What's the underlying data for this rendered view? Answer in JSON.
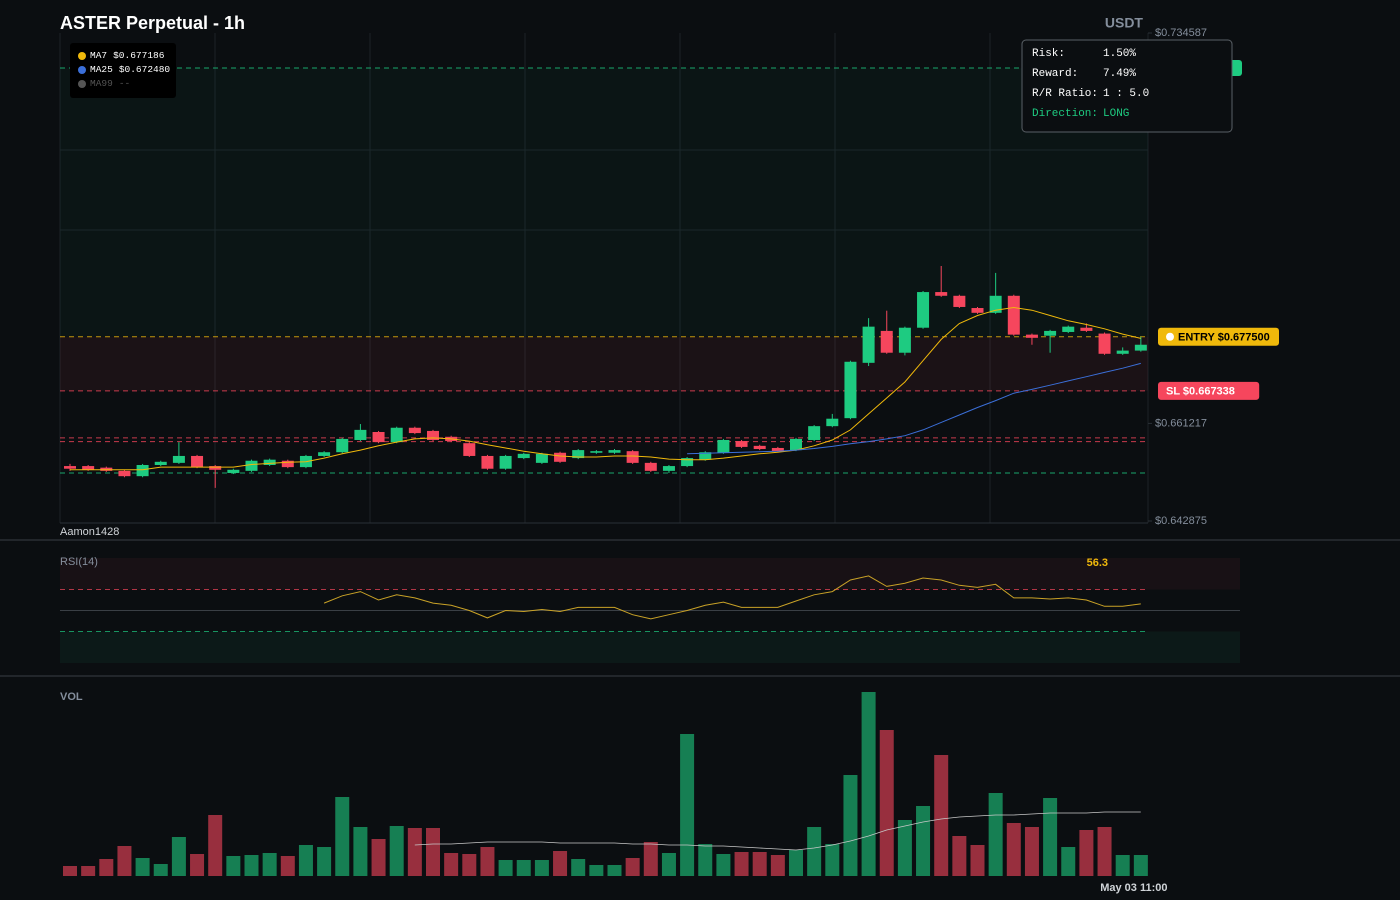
{
  "title": "ASTER Perpetual - 1h",
  "currency": "USDT",
  "watermark": "Aamon1428",
  "info": [
    [
      "Risk:",
      "1.50%"
    ],
    [
      "Reward:",
      "7.49%"
    ],
    [
      "R/R Ratio:",
      "1 : 5.0"
    ],
    [
      "Direction:",
      "LONG"
    ]
  ],
  "chart_data": [
    {
      "type": "candlestick",
      "colors": {
        "up": "#1ecb81",
        "down": "#f6465d"
      },
      "open": [
        0.6532,
        0.6532,
        0.6529,
        0.6523,
        0.6513,
        0.6534,
        0.6538,
        0.6551,
        0.6532,
        0.6519,
        0.6523,
        0.6534,
        0.6542,
        0.653,
        0.6551,
        0.6558,
        0.6581,
        0.6596,
        0.6577,
        0.6604,
        0.6598,
        0.6587,
        0.6575,
        0.6551,
        0.6527,
        0.6547,
        0.6538,
        0.6557,
        0.6547,
        0.6557,
        0.6557,
        0.656,
        0.6538,
        0.6523,
        0.6532,
        0.6544,
        0.6557,
        0.6579,
        0.657,
        0.6566,
        0.6562,
        0.6581,
        0.6607,
        0.6622,
        0.6726,
        0.6786,
        0.6745,
        0.6792,
        0.6859,
        0.6852,
        0.6829,
        0.682,
        0.6852,
        0.6779,
        0.6777,
        0.6784,
        0.6792,
        0.6781,
        0.6743,
        0.6749
      ],
      "high": [
        0.6536,
        0.6534,
        0.6531,
        0.6525,
        0.6536,
        0.6542,
        0.6577,
        0.6553,
        0.6534,
        0.6527,
        0.6544,
        0.6546,
        0.6544,
        0.6553,
        0.656,
        0.6585,
        0.6611,
        0.6598,
        0.6606,
        0.6606,
        0.66,
        0.6589,
        0.6577,
        0.6553,
        0.6553,
        0.6557,
        0.6557,
        0.6559,
        0.6564,
        0.6562,
        0.6564,
        0.6562,
        0.654,
        0.6534,
        0.6549,
        0.656,
        0.6583,
        0.6581,
        0.6572,
        0.6568,
        0.6585,
        0.6609,
        0.663,
        0.673,
        0.681,
        0.6824,
        0.6794,
        0.6861,
        0.6908,
        0.6854,
        0.6831,
        0.6895,
        0.6854,
        0.6781,
        0.6788,
        0.6796,
        0.68,
        0.6783,
        0.6755,
        0.6775
      ],
      "low": [
        0.6523,
        0.6523,
        0.6521,
        0.6511,
        0.6511,
        0.6532,
        0.6536,
        0.6528,
        0.6491,
        0.6517,
        0.6521,
        0.6532,
        0.6528,
        0.6528,
        0.6549,
        0.6556,
        0.6579,
        0.6575,
        0.6575,
        0.6592,
        0.6579,
        0.6577,
        0.6549,
        0.6525,
        0.6525,
        0.6545,
        0.6536,
        0.6538,
        0.6545,
        0.6555,
        0.6555,
        0.6536,
        0.6521,
        0.6519,
        0.653,
        0.6542,
        0.6555,
        0.6566,
        0.6562,
        0.6558,
        0.656,
        0.6579,
        0.6605,
        0.662,
        0.672,
        0.6743,
        0.674,
        0.679,
        0.685,
        0.6829,
        0.6818,
        0.6818,
        0.6777,
        0.676,
        0.6745,
        0.6782,
        0.6784,
        0.6741,
        0.6741,
        0.6747
      ],
      "close": [
        0.6527,
        0.6525,
        0.6523,
        0.6513,
        0.6534,
        0.654,
        0.6551,
        0.653,
        0.6525,
        0.6525,
        0.6542,
        0.6544,
        0.653,
        0.6551,
        0.6558,
        0.6583,
        0.66,
        0.6577,
        0.6604,
        0.6594,
        0.6581,
        0.6579,
        0.6551,
        0.6527,
        0.6551,
        0.6555,
        0.6555,
        0.654,
        0.6562,
        0.656,
        0.6562,
        0.6538,
        0.6523,
        0.6532,
        0.6547,
        0.6558,
        0.6581,
        0.6568,
        0.6564,
        0.656,
        0.6583,
        0.6607,
        0.6621,
        0.6728,
        0.6794,
        0.6745,
        0.6792,
        0.6859,
        0.6852,
        0.6831,
        0.682,
        0.6852,
        0.6779,
        0.6773,
        0.6786,
        0.6794,
        0.6786,
        0.6743,
        0.6749,
        0.676
      ],
      "ylim": [
        0.642875,
        0.734587
      ],
      "yticks": [
        {
          "value": 0.734587,
          "label": "$0.734587"
        },
        {
          "value": 0.661217,
          "label": "$0.661217"
        },
        {
          "value": 0.642875,
          "label": "$0.642875"
        }
      ],
      "series": [
        {
          "name": "MA7",
          "color": "#f0b90b",
          "value_label": "$0.677186",
          "values": [
            0.6525,
            0.6525,
            0.6525,
            0.6525,
            0.6525,
            0.653,
            0.653,
            0.653,
            0.653,
            0.653,
            0.6535,
            0.6537,
            0.6539,
            0.654,
            0.6547,
            0.6555,
            0.6562,
            0.657,
            0.6577,
            0.6583,
            0.6585,
            0.6583,
            0.6579,
            0.6572,
            0.6566,
            0.656,
            0.6555,
            0.6551,
            0.6549,
            0.6549,
            0.6551,
            0.6551,
            0.6549,
            0.6545,
            0.6544,
            0.6544,
            0.6547,
            0.6551,
            0.6555,
            0.6558,
            0.6562,
            0.657,
            0.6581,
            0.66,
            0.663,
            0.666,
            0.669,
            0.673,
            0.677,
            0.68,
            0.6815,
            0.6825,
            0.683,
            0.6825,
            0.6815,
            0.6805,
            0.6798,
            0.679,
            0.678,
            0.6772
          ]
        },
        {
          "name": "MA25",
          "color": "#3b6fd9",
          "value_label": "$0.672480",
          "values": [
            null,
            null,
            null,
            null,
            null,
            null,
            null,
            null,
            null,
            null,
            null,
            null,
            null,
            null,
            null,
            null,
            null,
            null,
            null,
            null,
            null,
            null,
            null,
            null,
            null,
            null,
            null,
            null,
            null,
            null,
            null,
            null,
            null,
            null,
            0.6555,
            0.6556,
            0.6557,
            0.6558,
            0.6559,
            0.656,
            0.6562,
            0.6565,
            0.6569,
            0.6574,
            0.6578,
            0.6583,
            0.6589,
            0.66,
            0.6614,
            0.6628,
            0.6642,
            0.6655,
            0.6669,
            0.6676,
            0.6684,
            0.6692,
            0.67,
            0.6708,
            0.6716,
            0.6725
          ]
        },
        {
          "name": "MA99",
          "color": "#555555",
          "value_label": "--",
          "values": [
            null,
            null,
            null,
            null,
            null,
            null,
            null,
            null,
            null,
            null,
            null,
            null,
            null,
            null,
            null,
            null,
            null,
            null,
            null,
            null,
            null,
            null,
            null,
            null,
            null,
            null,
            null,
            null,
            null,
            null,
            null,
            null,
            null,
            null,
            null,
            null,
            null,
            null,
            null,
            null,
            null,
            null,
            null,
            null,
            null,
            null,
            null,
            null,
            null,
            null,
            null,
            null,
            null,
            null,
            null,
            null,
            null,
            null,
            null,
            null
          ]
        }
      ],
      "levels": [
        {
          "value": 0.728,
          "color": "#1ecb81"
        },
        {
          "value": 0.6775,
          "label": "ENTRY $0.677500",
          "color": "#f0b90b"
        },
        {
          "value": 0.667338,
          "label": "SL $0.667338",
          "color": "#f6465d"
        },
        {
          "value": 0.6585,
          "color": "#f6465d"
        },
        {
          "value": 0.6578,
          "color": "#f6465d"
        },
        {
          "value": 0.6519,
          "color": "#1ecb81"
        }
      ]
    },
    {
      "type": "line",
      "title": "RSI(14)",
      "color": "#c9a227",
      "ylim": [
        0,
        100
      ],
      "levels": [
        70,
        50,
        30
      ],
      "values": [
        null,
        null,
        null,
        null,
        null,
        null,
        null,
        null,
        null,
        null,
        null,
        null,
        null,
        null,
        57,
        64,
        68,
        60,
        65,
        62,
        57,
        55,
        50,
        43,
        50,
        49,
        51,
        49,
        53,
        53,
        53,
        46,
        42,
        46,
        50,
        55,
        58,
        53,
        53,
        53,
        59,
        65,
        68,
        79,
        83,
        73,
        76,
        81,
        79,
        74,
        72,
        75,
        62,
        62,
        61,
        62,
        60,
        54,
        54,
        56.3
      ]
    },
    {
      "type": "bar",
      "title": "VOL",
      "values": [
        10,
        10,
        17,
        30,
        18,
        12,
        39,
        22,
        61,
        20,
        21,
        23,
        20,
        31,
        29,
        79,
        49,
        37,
        50,
        48,
        48,
        23,
        22,
        29,
        16,
        16,
        16,
        25,
        17,
        11,
        11,
        18,
        34,
        23,
        142,
        32,
        22,
        24,
        24,
        21,
        26,
        49,
        32,
        101,
        184,
        146,
        56,
        70,
        121,
        40,
        31,
        83,
        53,
        49,
        78,
        29,
        46,
        49,
        21,
        21
      ],
      "ma_values": [
        null,
        null,
        null,
        null,
        null,
        null,
        null,
        null,
        null,
        null,
        null,
        null,
        null,
        null,
        null,
        null,
        null,
        null,
        null,
        31,
        32,
        32,
        33,
        34,
        34,
        34,
        34,
        33,
        33,
        33,
        33,
        32,
        32,
        31,
        31,
        30,
        30,
        29,
        28,
        27,
        26,
        28,
        31,
        35,
        40,
        46,
        50,
        54,
        57,
        59,
        60,
        61,
        61,
        62,
        63,
        63,
        63,
        64,
        64,
        64
      ],
      "xticks": [
        {
          "value": 59,
          "label": "May 03 11:00"
        }
      ]
    }
  ]
}
